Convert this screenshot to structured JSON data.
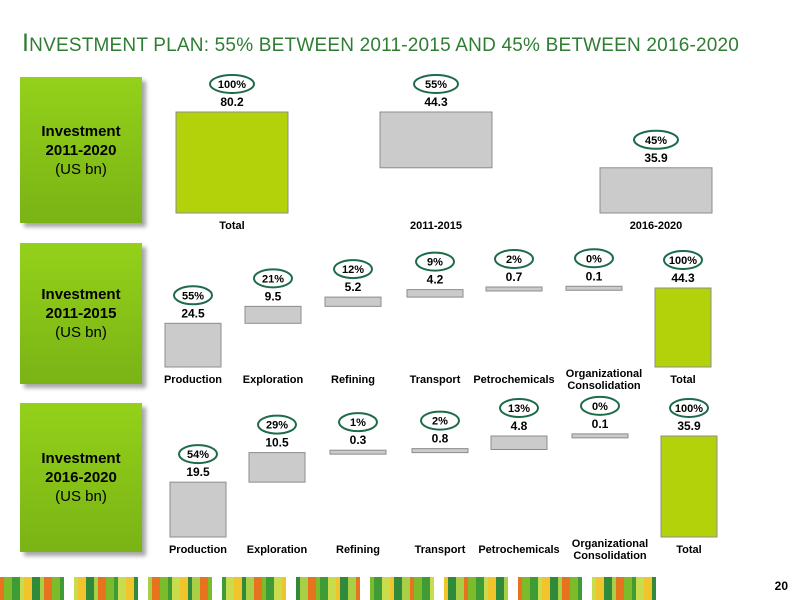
{
  "title": {
    "initial": "I",
    "rest": "NVESTMENT PLAN: 55% BETWEEN 2011-2015 AND 45% BETWEEN 2016-2020"
  },
  "page_number": "20",
  "chart_data": [
    {
      "type": "bar",
      "subtype": "waterfall",
      "side_label": {
        "line1": "Investment",
        "line2": "2011-2020",
        "line3": "(US bn)"
      },
      "categories": [
        "Total",
        "2011-2015",
        "2016-2020"
      ],
      "values": [
        80.2,
        44.3,
        35.9
      ],
      "value_labels": [
        "80.2",
        "44.3",
        "35.9"
      ],
      "percent_labels": [
        "100%",
        "55%",
        "45%"
      ],
      "ylim": [
        0,
        80.2
      ],
      "colors": {
        "total": "#b4d20a",
        "step": "#cbcbcb"
      }
    },
    {
      "type": "bar",
      "subtype": "waterfall",
      "side_label": {
        "line1": "Investment",
        "line2": "2011-2015",
        "line3": "(US bn)"
      },
      "categories": [
        "Production",
        "Exploration",
        "Refining",
        "Transport",
        "Petrochemicals",
        "Organizational Consolidation",
        "Total"
      ],
      "values": [
        24.5,
        9.5,
        5.2,
        4.2,
        0.7,
        0.1,
        44.3
      ],
      "value_labels": [
        "24.5",
        "9.5",
        "5.2",
        "4.2",
        "0.7",
        "0.1",
        "44.3"
      ],
      "percent_labels": [
        "55%",
        "21%",
        "12%",
        "9%",
        "2%",
        "0%",
        "100%"
      ],
      "ylim": [
        0,
        44.3
      ],
      "colors": {
        "total": "#b4d20a",
        "step": "#cbcbcb"
      }
    },
    {
      "type": "bar",
      "subtype": "waterfall",
      "side_label": {
        "line1": "Investment",
        "line2": "2016-2020",
        "line3": "(US bn)"
      },
      "categories": [
        "Production",
        "Exploration",
        "Refining",
        "Transport",
        "Petrochemicals",
        "Organizational Consolidation",
        "Total"
      ],
      "values": [
        19.5,
        10.5,
        0.3,
        0.8,
        4.8,
        0.1,
        35.9
      ],
      "value_labels": [
        "19.5",
        "10.5",
        "0.3",
        "0.8",
        "4.8",
        "0.1",
        "35.9"
      ],
      "percent_labels": [
        "54%",
        "29%",
        "1%",
        "2%",
        "13%",
        "0%",
        "100%"
      ],
      "ylim": [
        0,
        35.9
      ],
      "colors": {
        "total": "#b4d20a",
        "step": "#cbcbcb"
      }
    }
  ]
}
